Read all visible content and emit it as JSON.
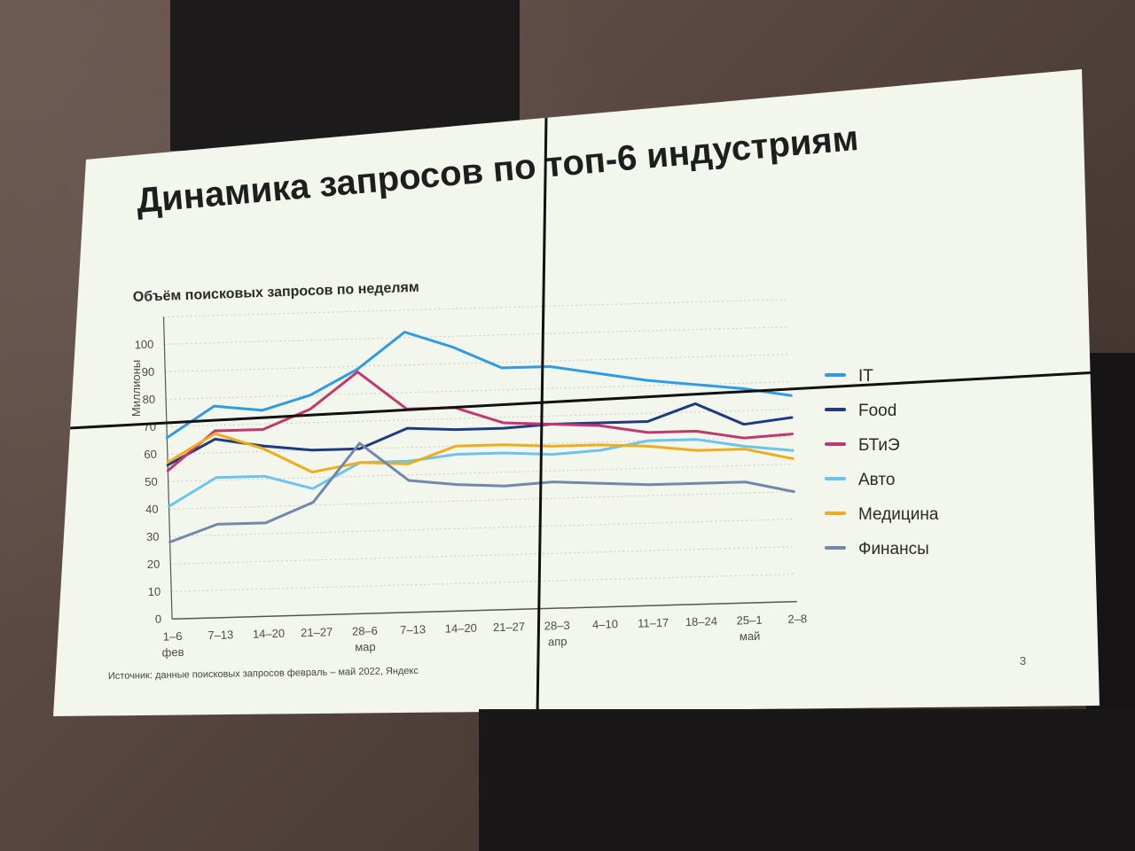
{
  "slide": {
    "title": "Динамика запросов по топ-6 индустриям",
    "subtitle": "Объём поисковых запросов по неделям",
    "source": "Источник: данные поисковых запросов февраль – май 2022, Яндекс",
    "page_number": "3"
  },
  "chart_data": {
    "type": "line",
    "title": "Объём поисковых запросов по неделям",
    "ylabel": "Миллионы",
    "xlabel": "",
    "ylim": [
      0,
      100
    ],
    "yticks": [
      0,
      10,
      20,
      30,
      40,
      50,
      60,
      70,
      80,
      90,
      100
    ],
    "categories": [
      "1–6",
      "7–13",
      "14–20",
      "21–27",
      "28–6",
      "7–13",
      "14–20",
      "21–27",
      "28–3",
      "4–10",
      "11–17",
      "18–24",
      "25–1",
      "2–8"
    ],
    "month_labels": [
      {
        "index": 0,
        "label": "фев"
      },
      {
        "index": 4,
        "label": "мар"
      },
      {
        "index": 8,
        "label": "апр"
      },
      {
        "index": 12,
        "label": "май"
      }
    ],
    "grid": true,
    "legend_position": "right",
    "series": [
      {
        "name": "IT",
        "color": "#2e9be6",
        "values": [
          66,
          77,
          75,
          80,
          89,
          102,
          96,
          88,
          88,
          85,
          82,
          80,
          78,
          75
        ]
      },
      {
        "name": "Food",
        "color": "#1f3a82",
        "values": [
          56,
          65,
          62,
          60,
          60,
          67,
          66,
          66,
          67,
          67,
          67,
          73,
          65,
          67
        ]
      },
      {
        "name": "БТиЭ",
        "color": "#c0386e",
        "values": [
          54,
          68,
          68,
          75,
          88,
          74,
          74,
          68,
          67,
          66,
          63,
          63,
          60,
          61
        ]
      },
      {
        "name": "Авто",
        "color": "#6cc3ee",
        "values": [
          41,
          51,
          51,
          46,
          55,
          55,
          57,
          57,
          56,
          57,
          60,
          60,
          57,
          55
        ]
      },
      {
        "name": "Медицина",
        "color": "#f0ad1a",
        "values": [
          57,
          67,
          61,
          52,
          55,
          54,
          60,
          60,
          59,
          59,
          58,
          56,
          56,
          52
        ]
      },
      {
        "name": "Финансы",
        "color": "#7287ac",
        "values": [
          28,
          34,
          34,
          41,
          62,
          48,
          46,
          45,
          46,
          45,
          44,
          44,
          44,
          40
        ]
      }
    ]
  }
}
